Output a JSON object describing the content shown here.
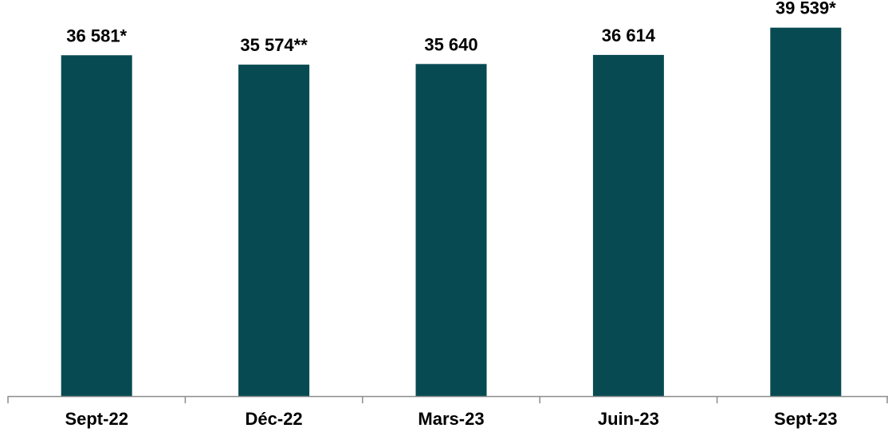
{
  "chart_data": {
    "type": "bar",
    "categories": [
      "Sept-22",
      "Déc-22",
      "Mars-23",
      "Juin-23",
      "Sept-23"
    ],
    "values": [
      36581,
      35574,
      35640,
      36614,
      39539
    ],
    "data_labels": [
      "36 581*",
      "35 574**",
      "35 640",
      "36 614",
      "39 539*"
    ],
    "ylim": [
      0,
      40800
    ],
    "title": "",
    "xlabel": "",
    "ylabel": "",
    "grid": false,
    "legend": "none",
    "bar_color": "#074a52",
    "axis_color": "#8c8c8c"
  }
}
